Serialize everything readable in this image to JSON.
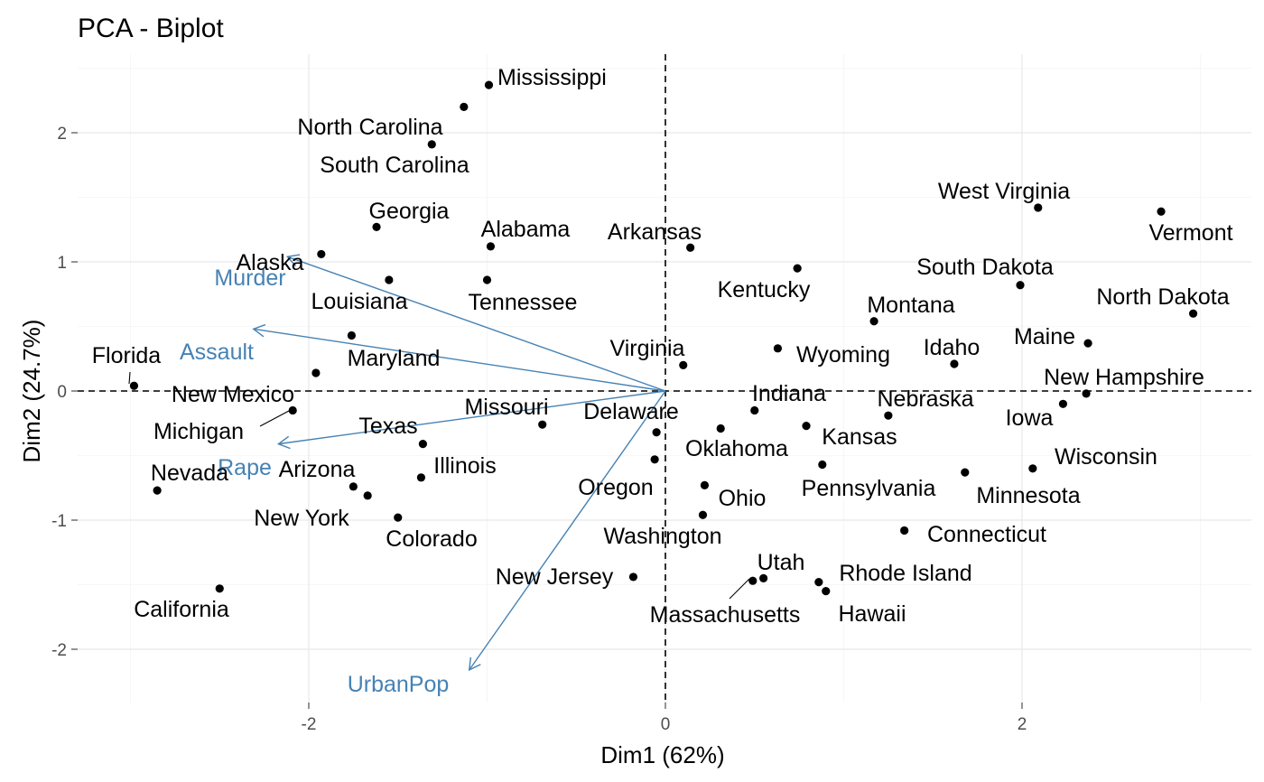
{
  "chart_data": {
    "type": "scatter",
    "title": "PCA - Biplot",
    "xlabel": "Dim1 (62%)",
    "ylabel": "Dim2 (24.7%)",
    "xlim": [
      -3.0,
      3.3
    ],
    "ylim": [
      -2.38,
      2.58
    ],
    "xticks": [
      -2,
      0,
      2
    ],
    "yticks": [
      -2,
      -1,
      0,
      1,
      2
    ],
    "xticklabels": [
      "-2",
      "0",
      "2"
    ],
    "yticklabels": [
      "-2",
      "-1",
      "0",
      "1",
      "2"
    ],
    "grid": true,
    "zero_lines": "dashed",
    "point_color": "#000000",
    "variable_color": "#4682b4",
    "points": [
      {
        "label": "Alabama",
        "x": -0.98,
        "y": 1.12
      },
      {
        "label": "Alaska",
        "x": -1.93,
        "y": 1.06
      },
      {
        "label": "Arizona",
        "x": -1.75,
        "y": -0.74
      },
      {
        "label": "Arkansas",
        "x": 0.14,
        "y": 1.11
      },
      {
        "label": "California",
        "x": -2.5,
        "y": -1.53
      },
      {
        "label": "Colorado",
        "x": -1.5,
        "y": -0.98
      },
      {
        "label": "Connecticut",
        "x": 1.34,
        "y": -1.08
      },
      {
        "label": "Delaware",
        "x": -0.05,
        "y": -0.32
      },
      {
        "label": "Florida",
        "x": -2.98,
        "y": 0.04
      },
      {
        "label": "Georgia",
        "x": -1.62,
        "y": 1.27
      },
      {
        "label": "Hawaii",
        "x": 0.9,
        "y": -1.55
      },
      {
        "label": "Idaho",
        "x": 1.62,
        "y": 0.21
      },
      {
        "label": "Illinois",
        "x": -1.37,
        "y": -0.67
      },
      {
        "label": "Indiana",
        "x": 0.5,
        "y": -0.15
      },
      {
        "label": "Iowa",
        "x": 2.23,
        "y": -0.1
      },
      {
        "label": "Kansas",
        "x": 0.79,
        "y": -0.27
      },
      {
        "label": "Kentucky",
        "x": 0.74,
        "y": 0.95
      },
      {
        "label": "Louisiana",
        "x": -1.55,
        "y": 0.86
      },
      {
        "label": "Maine",
        "x": 2.37,
        "y": 0.37
      },
      {
        "label": "Maryland",
        "x": -1.76,
        "y": 0.43
      },
      {
        "label": "Massachusetts",
        "x": 0.49,
        "y": -1.47
      },
      {
        "label": "Michigan",
        "x": -2.09,
        "y": -0.15
      },
      {
        "label": "Minnesota",
        "x": 1.68,
        "y": -0.63
      },
      {
        "label": "Mississippi",
        "x": -0.99,
        "y": 2.37
      },
      {
        "label": "Missouri",
        "x": -0.69,
        "y": -0.26
      },
      {
        "label": "Montana",
        "x": 1.17,
        "y": 0.54
      },
      {
        "label": "Nebraska",
        "x": 1.25,
        "y": -0.19
      },
      {
        "label": "Nevada",
        "x": -2.85,
        "y": -0.77
      },
      {
        "label": "New Hampshire",
        "x": 2.36,
        "y": -0.02
      },
      {
        "label": "New Jersey",
        "x": -0.18,
        "y": -1.44
      },
      {
        "label": "New Mexico",
        "x": -1.96,
        "y": 0.14
      },
      {
        "label": "New York",
        "x": -1.67,
        "y": -0.81
      },
      {
        "label": "North Carolina",
        "x": -1.31,
        "y": 1.91
      },
      {
        "label": "North Dakota",
        "x": 2.96,
        "y": 0.6
      },
      {
        "label": "Ohio",
        "x": 0.22,
        "y": -0.73
      },
      {
        "label": "Oklahoma",
        "x": 0.31,
        "y": -0.29
      },
      {
        "label": "Oregon",
        "x": -0.06,
        "y": -0.53
      },
      {
        "label": "Pennsylvania",
        "x": 0.88,
        "y": -0.57
      },
      {
        "label": "Rhode Island",
        "x": 0.86,
        "y": -1.48
      },
      {
        "label": "South Carolina",
        "x": -1.13,
        "y": 2.2
      },
      {
        "label": "South Dakota",
        "x": 1.99,
        "y": 0.82
      },
      {
        "label": "Tennessee",
        "x": -1.0,
        "y": 0.86
      },
      {
        "label": "Texas",
        "x": -1.36,
        "y": -0.41
      },
      {
        "label": "Utah",
        "x": 0.55,
        "y": -1.45
      },
      {
        "label": "Vermont",
        "x": 2.78,
        "y": 1.39
      },
      {
        "label": "Virginia",
        "x": 0.1,
        "y": 0.2
      },
      {
        "label": "Washington",
        "x": 0.21,
        "y": -0.96
      },
      {
        "label": "West Virginia",
        "x": 2.09,
        "y": 1.42
      },
      {
        "label": "Wisconsin",
        "x": 2.06,
        "y": -0.6
      },
      {
        "label": "Wyoming",
        "x": 0.63,
        "y": 0.33
      }
    ],
    "variables": [
      {
        "label": "Murder",
        "x": -2.12,
        "y": 1.04
      },
      {
        "label": "Assault",
        "x": -2.31,
        "y": 0.48
      },
      {
        "label": "UrbanPop",
        "x": -1.1,
        "y": -2.16
      },
      {
        "label": "Rape",
        "x": -2.17,
        "y": -0.41
      }
    ]
  }
}
